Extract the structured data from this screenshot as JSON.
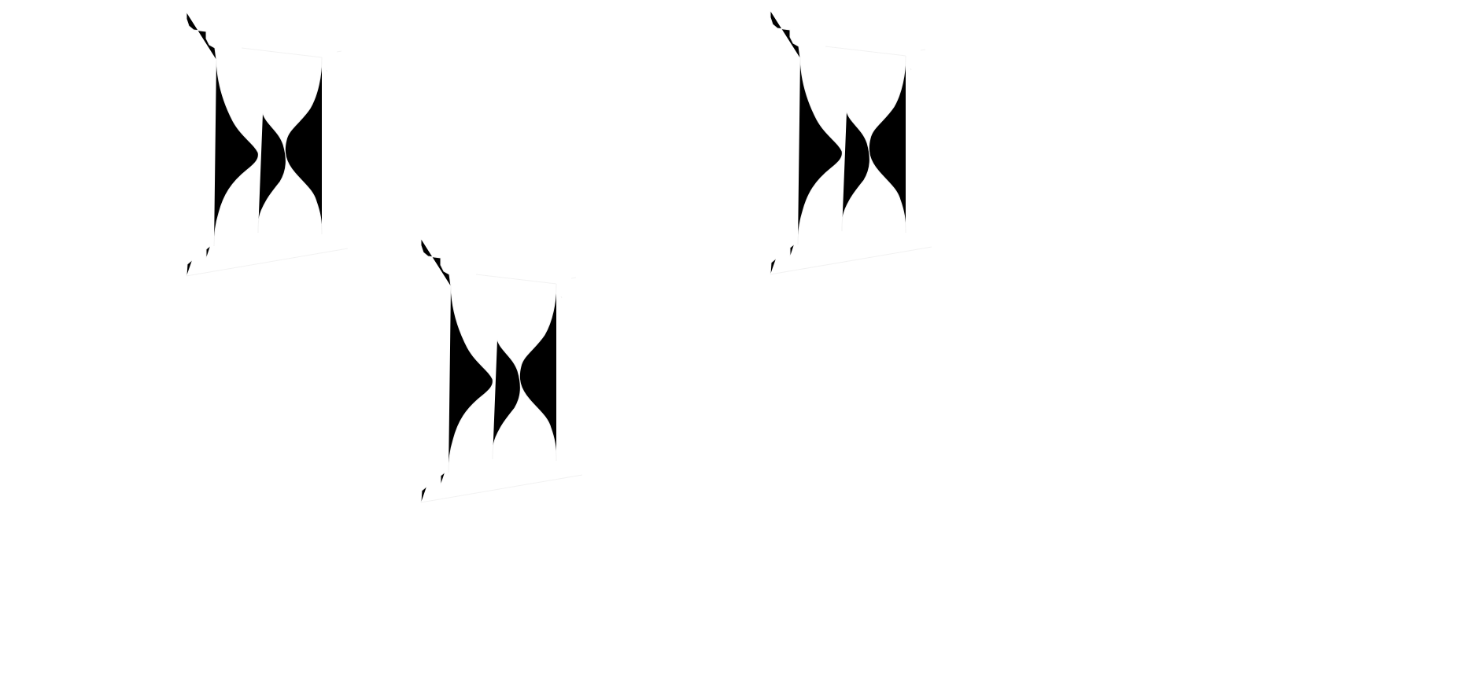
{
  "palette": {
    "background": "#ffffff",
    "stroke": "#f2f2f2"
  },
  "graphics": [
    {
      "icon": "hourglass-icon"
    },
    {
      "icon": "hourglass-icon"
    },
    {
      "icon": "hourglass-icon"
    }
  ]
}
